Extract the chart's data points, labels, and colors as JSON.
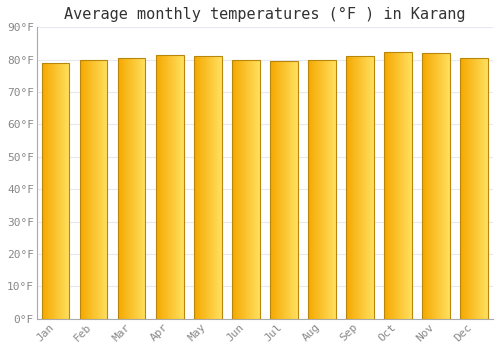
{
  "title": "Average monthly temperatures (°F ) in Karang",
  "months": [
    "Jan",
    "Feb",
    "Mar",
    "Apr",
    "May",
    "Jun",
    "Jul",
    "Aug",
    "Sep",
    "Oct",
    "Nov",
    "Dec"
  ],
  "values": [
    79.0,
    80.0,
    80.5,
    81.5,
    81.0,
    80.0,
    79.5,
    80.0,
    81.0,
    82.5,
    82.0,
    80.5
  ],
  "bar_color_left": "#F5A800",
  "bar_color_right": "#FFE060",
  "bar_edge_color": "#B8860B",
  "background_color": "#FFFFFF",
  "plot_bg_color": "#FFFFFF",
  "grid_color": "#E8E8F0",
  "ytick_labels": [
    "0°F",
    "10°F",
    "20°F",
    "30°F",
    "40°F",
    "50°F",
    "60°F",
    "70°F",
    "80°F",
    "90°F"
  ],
  "ytick_values": [
    0,
    10,
    20,
    30,
    40,
    50,
    60,
    70,
    80,
    90
  ],
  "ylim": [
    0,
    90
  ],
  "title_fontsize": 11,
  "tick_fontsize": 8,
  "font_family": "monospace",
  "tick_color": "#888888",
  "spine_color": "#AAAAAA"
}
